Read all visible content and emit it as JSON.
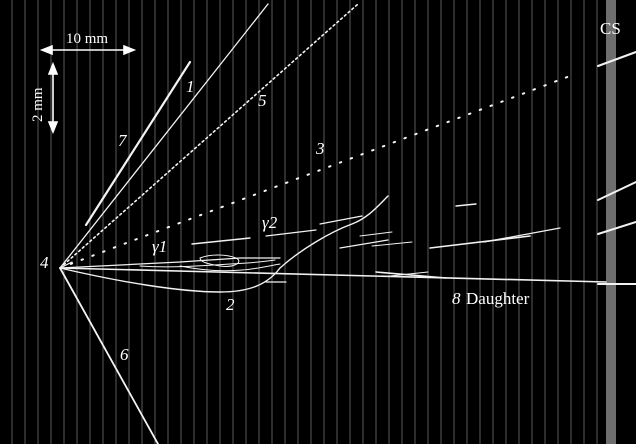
{
  "scale_bar": {
    "horizontal_label": "10 mm",
    "vertical_label": "2 mm"
  },
  "track_labels": {
    "t1": "1",
    "t2": "2",
    "t3": "3",
    "t4": "4",
    "t5": "5",
    "t6": "6",
    "t7": "7",
    "t8_number": "8",
    "t8_text": "Daughter",
    "gamma1": "γ1",
    "gamma2": "γ2"
  },
  "detector_label": "CS",
  "colors": {
    "background": "#000000",
    "grid_line": "#5a5a5a",
    "cs_strip": "#6e6e6e",
    "track": "#f2f2f2",
    "label": "#ffffff"
  }
}
